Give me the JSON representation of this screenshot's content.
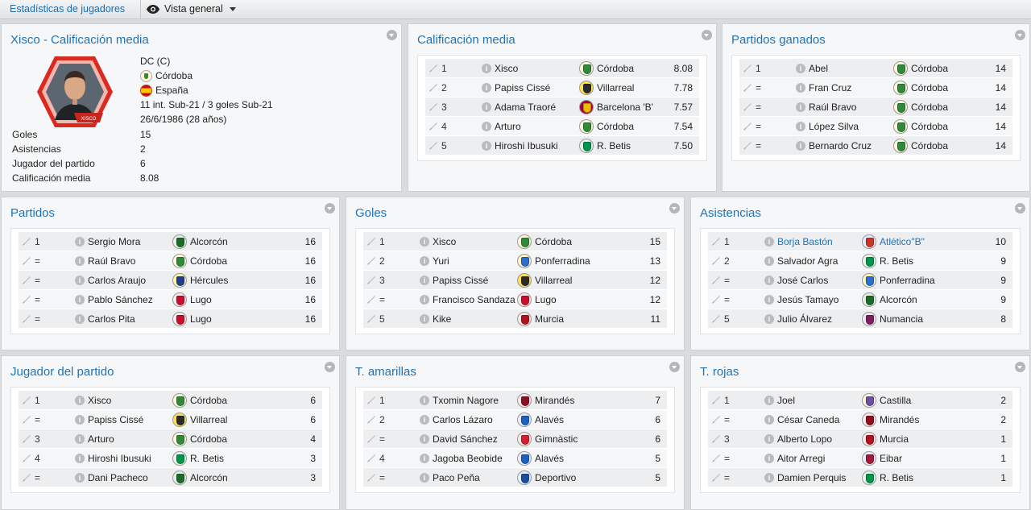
{
  "topbar": {
    "tab_label": "Estadísticas de jugadores",
    "view_label": "Vista general"
  },
  "player": {
    "title": "Xisco - Calificación media",
    "photo_label": "XISCO",
    "position": "DC (C)",
    "club": "Córdoba",
    "nationality": "España",
    "international": "11 int. Sub-21 / 3 goles Sub-21",
    "birth": "26/6/1986 (28 años)",
    "stats": [
      {
        "label": "Goles",
        "value": "15"
      },
      {
        "label": "Asistencias",
        "value": "2"
      },
      {
        "label": "Jugador del partido",
        "value": "6"
      },
      {
        "label": "Calificación media",
        "value": "8.08"
      }
    ]
  },
  "panels": {
    "calificacion": {
      "title": "Calificación media",
      "rows": [
        {
          "rank": "1",
          "name": "Xisco",
          "club": "Córdoba",
          "value": "8.08",
          "c1": "#fff7d9",
          "c2": "#2f8a3a"
        },
        {
          "rank": "2",
          "name": "Papiss Cissé",
          "club": "Villarreal",
          "value": "7.78",
          "c1": "#ffe14d",
          "c2": "#2a2a2a"
        },
        {
          "rank": "3",
          "name": "Adama Traoré",
          "club": "Barcelona 'B'",
          "value": "7.57",
          "c1": "#a50044",
          "c2": "#edbb00"
        },
        {
          "rank": "4",
          "name": "Arturo",
          "club": "Córdoba",
          "value": "7.54",
          "c1": "#fff7d9",
          "c2": "#2f8a3a"
        },
        {
          "rank": "5",
          "name": "Hiroshi Ibusuki",
          "club": "R. Betis",
          "value": "7.50",
          "c1": "#e8f4ea",
          "c2": "#00954c"
        }
      ]
    },
    "ganados": {
      "title": "Partidos ganados",
      "rows": [
        {
          "rank": "1",
          "name": "Abel",
          "club": "Córdoba",
          "value": "14",
          "c1": "#fff7d9",
          "c2": "#2f8a3a"
        },
        {
          "rank": "=",
          "name": "Fran Cruz",
          "club": "Córdoba",
          "value": "14",
          "c1": "#fff7d9",
          "c2": "#2f8a3a"
        },
        {
          "rank": "=",
          "name": "Raúl Bravo",
          "club": "Córdoba",
          "value": "14",
          "c1": "#fff7d9",
          "c2": "#2f8a3a"
        },
        {
          "rank": "=",
          "name": "López Silva",
          "club": "Córdoba",
          "value": "14",
          "c1": "#fff7d9",
          "c2": "#2f8a3a"
        },
        {
          "rank": "=",
          "name": "Bernardo Cruz",
          "club": "Córdoba",
          "value": "14",
          "c1": "#fff7d9",
          "c2": "#2f8a3a"
        }
      ]
    },
    "partidos": {
      "title": "Partidos",
      "rows": [
        {
          "rank": "1",
          "name": "Sergio Mora",
          "club": "Alcorcón",
          "value": "16",
          "c1": "#e6f0e6",
          "c2": "#1d6b2b"
        },
        {
          "rank": "=",
          "name": "Raúl Bravo",
          "club": "Córdoba",
          "value": "16",
          "c1": "#fff7d9",
          "c2": "#2f8a3a"
        },
        {
          "rank": "=",
          "name": "Carlos Araujo",
          "club": "Hércules",
          "value": "16",
          "c1": "#fff1b0",
          "c2": "#1d3d8f"
        },
        {
          "rank": "=",
          "name": "Pablo Sánchez",
          "club": "Lugo",
          "value": "16",
          "c1": "#ffe8ea",
          "c2": "#c8102e"
        },
        {
          "rank": "=",
          "name": "Carlos Pita",
          "club": "Lugo",
          "value": "16",
          "c1": "#ffe8ea",
          "c2": "#c8102e"
        }
      ]
    },
    "goles": {
      "title": "Goles",
      "rows": [
        {
          "rank": "1",
          "name": "Xisco",
          "club": "Córdoba",
          "value": "15",
          "c1": "#fff7d9",
          "c2": "#2f8a3a"
        },
        {
          "rank": "2",
          "name": "Yuri",
          "club": "Ponferradina",
          "value": "13",
          "c1": "#fff3c8",
          "c2": "#2a6fd1"
        },
        {
          "rank": "3",
          "name": "Papiss Cissé",
          "club": "Villarreal",
          "value": "12",
          "c1": "#ffe14d",
          "c2": "#2a2a2a"
        },
        {
          "rank": "=",
          "name": "Francisco Sandaza",
          "club": "Lugo",
          "value": "12",
          "c1": "#ffe8ea",
          "c2": "#c8102e"
        },
        {
          "rank": "5",
          "name": "Kike",
          "club": "Murcia",
          "value": "11",
          "c1": "#ffe8ea",
          "c2": "#b0131d"
        }
      ]
    },
    "asistencias": {
      "title": "Asistencias",
      "rows": [
        {
          "rank": "1",
          "name": "Borja Bastón",
          "club": "Atlético\"B\"",
          "value": "10",
          "link": true,
          "c1": "#e8ecff",
          "c2": "#cb3524"
        },
        {
          "rank": "2",
          "name": "Salvador Agra",
          "club": "R. Betis",
          "value": "9",
          "c1": "#e8f4ea",
          "c2": "#00954c"
        },
        {
          "rank": "=",
          "name": "José Carlos",
          "club": "Ponferradina",
          "value": "9",
          "c1": "#fff3c8",
          "c2": "#2a6fd1"
        },
        {
          "rank": "=",
          "name": "Jesús Tamayo",
          "club": "Alcorcón",
          "value": "9",
          "c1": "#e6f0e6",
          "c2": "#1d6b2b"
        },
        {
          "rank": "5",
          "name": "Julio Álvarez",
          "club": "Numancia",
          "value": "8",
          "c1": "#f1e6f2",
          "c2": "#7a1f5c"
        }
      ]
    },
    "mvp": {
      "title": "Jugador del partido",
      "rows": [
        {
          "rank": "1",
          "name": "Xisco",
          "club": "Córdoba",
          "value": "6",
          "c1": "#fff7d9",
          "c2": "#2f8a3a"
        },
        {
          "rank": "=",
          "name": "Papiss Cissé",
          "club": "Villarreal",
          "value": "6",
          "c1": "#ffe14d",
          "c2": "#2a2a2a"
        },
        {
          "rank": "3",
          "name": "Arturo",
          "club": "Córdoba",
          "value": "4",
          "c1": "#fff7d9",
          "c2": "#2f8a3a"
        },
        {
          "rank": "4",
          "name": "Hiroshi Ibusuki",
          "club": "R. Betis",
          "value": "3",
          "c1": "#e8f4ea",
          "c2": "#00954c"
        },
        {
          "rank": "=",
          "name": "Dani Pacheco",
          "club": "Alcorcón",
          "value": "3",
          "c1": "#e6f0e6",
          "c2": "#1d6b2b"
        }
      ]
    },
    "amarillas": {
      "title": "T. amarillas",
      "rows": [
        {
          "rank": "1",
          "name": "Txomin Nagore",
          "club": "Mirandés",
          "value": "7",
          "c1": "#ffe8ea",
          "c2": "#8a1020"
        },
        {
          "rank": "2",
          "name": "Carlos Lázaro",
          "club": "Alavés",
          "value": "6",
          "c1": "#e8f0ff",
          "c2": "#1f5fbf"
        },
        {
          "rank": "=",
          "name": "David Sánchez",
          "club": "Gimnàstic",
          "value": "6",
          "c1": "#ffe8ea",
          "c2": "#d1202e"
        },
        {
          "rank": "4",
          "name": "Jagoba Beobide",
          "club": "Alavés",
          "value": "5",
          "c1": "#e8f0ff",
          "c2": "#1f5fbf"
        },
        {
          "rank": "=",
          "name": "Paco Peña",
          "club": "Deportivo",
          "value": "5",
          "c1": "#e8f0ff",
          "c2": "#1a4fa0"
        }
      ]
    },
    "rojas": {
      "title": "T. rojas",
      "rows": [
        {
          "rank": "1",
          "name": "Joel",
          "club": "Castilla",
          "value": "2",
          "c1": "#fff7d9",
          "c2": "#6a4fa5"
        },
        {
          "rank": "=",
          "name": "César Caneda",
          "club": "Mirandés",
          "value": "2",
          "c1": "#ffe8ea",
          "c2": "#8a1020"
        },
        {
          "rank": "3",
          "name": "Alberto Lopo",
          "club": "Murcia",
          "value": "1",
          "c1": "#ffe8ea",
          "c2": "#b0131d"
        },
        {
          "rank": "=",
          "name": "Aitor Arregi",
          "club": "Eibar",
          "value": "1",
          "c1": "#e8ecff",
          "c2": "#a01a3a"
        },
        {
          "rank": "=",
          "name": "Damien Perquis",
          "club": "R. Betis",
          "value": "1",
          "c1": "#e8f4ea",
          "c2": "#00954c"
        }
      ]
    }
  }
}
